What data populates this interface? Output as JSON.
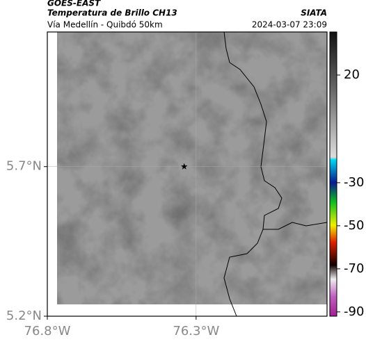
{
  "header": {
    "title": "GOES-EAST",
    "product": "Temperatura de Brillo CH13",
    "route": "Vía Medellín - Quibdó 50km",
    "source": "SIATA",
    "datetime": "2024-03-07 23:09"
  },
  "map": {
    "xlim": [
      -76.8,
      -75.86
    ],
    "ylim": [
      5.2,
      6.15
    ],
    "xticks": [
      {
        "value": -76.8,
        "label": "76.8°W"
      },
      {
        "value": -76.3,
        "label": "76.3°W"
      }
    ],
    "yticks": [
      {
        "value": 5.7,
        "label": "5.7°N"
      },
      {
        "value": 5.2,
        "label": "5.2°N"
      }
    ],
    "marker": {
      "lon": -76.34,
      "lat": 5.7
    }
  },
  "colorbar": {
    "range": [
      -92,
      40
    ],
    "ticks": [
      20,
      -30,
      -50,
      -70,
      -90
    ]
  }
}
